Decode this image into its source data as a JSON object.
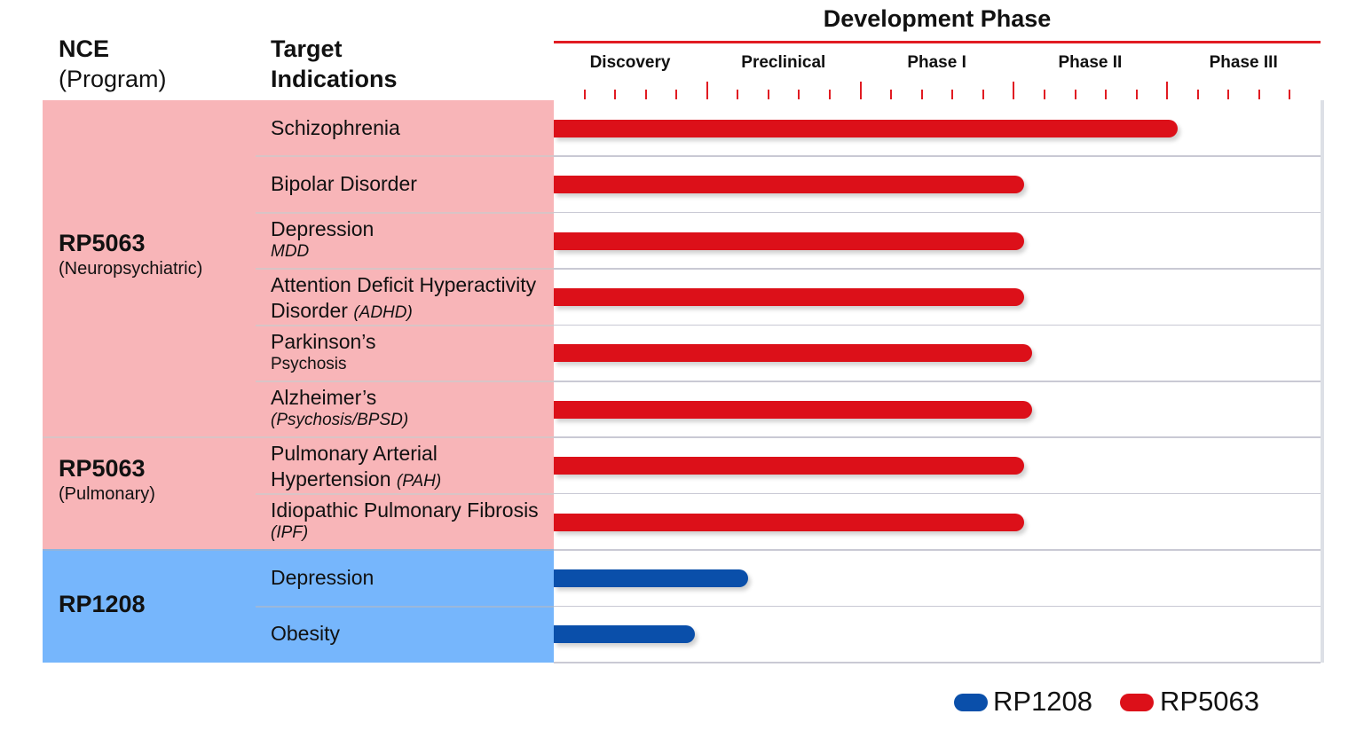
{
  "header": {
    "nce_line1": "NCE",
    "nce_line2": "(Program)",
    "target_line1": "Target",
    "target_line2": "Indications",
    "development_phase": "Development Phase"
  },
  "colors": {
    "rp5063_bar": "#dc1019",
    "rp1208_bar": "#0a4faa",
    "rp5063_band": "#f8b5b8",
    "rp1208_band": "#76b6fc",
    "phase_accent": "#e11b22"
  },
  "chart_data": {
    "type": "bar",
    "orientation": "horizontal",
    "x_axis": {
      "categories": [
        "Discovery",
        "Preclinical",
        "Phase I",
        "Phase II",
        "Phase III"
      ],
      "minor_ticks_per_phase": 5,
      "range": [
        0,
        5
      ],
      "unit": "phase"
    },
    "title": "Development Phase",
    "legend": {
      "placement": "bottom-right",
      "entries": [
        "RP1208",
        "RP5063"
      ]
    },
    "programs": [
      {
        "name": "RP5063",
        "subtitle": "(Neuropsychiatric)",
        "series": "RP5063"
      },
      {
        "name": "RP5063",
        "subtitle": "(Pulmonary)",
        "series": "RP5063"
      },
      {
        "name": "RP1208",
        "subtitle": "",
        "series": "RP1208"
      }
    ],
    "rows": [
      {
        "program": 0,
        "indication": "Schizophrenia",
        "sub": "",
        "sub_italic": false,
        "series": "RP5063",
        "value": 4.0
      },
      {
        "program": 0,
        "indication": "Bipolar Disorder",
        "sub": "",
        "sub_italic": false,
        "series": "RP5063",
        "value": 3.0
      },
      {
        "program": 0,
        "indication": "Depression",
        "sub": "MDD",
        "sub_italic": true,
        "series": "RP5063",
        "value": 3.0
      },
      {
        "program": 0,
        "indication": "Attention Deficit Hyperactivity",
        "indication2": "Disorder",
        "inline_sub": "(ADHD)",
        "sub": "",
        "sub_italic": true,
        "series": "RP5063",
        "value": 3.0
      },
      {
        "program": 0,
        "indication": "Parkinson’s",
        "sub": "Psychosis",
        "sub_italic": false,
        "series": "RP5063",
        "value": 3.05
      },
      {
        "program": 0,
        "indication": "Alzheimer’s",
        "sub": "(Psychosis/BPSD)",
        "sub_italic": true,
        "series": "RP5063",
        "value": 3.05
      },
      {
        "program": 1,
        "indication": "Pulmonary Arterial",
        "indication2": "Hypertension",
        "inline_sub": "(PAH)",
        "sub": "",
        "sub_italic": true,
        "series": "RP5063",
        "value": 3.0
      },
      {
        "program": 1,
        "indication": "Idiopathic Pulmonary Fibrosis",
        "sub": "(IPF)",
        "sub_italic": true,
        "series": "RP5063",
        "value": 3.0
      },
      {
        "program": 2,
        "indication": "Depression",
        "sub": "",
        "sub_italic": false,
        "series": "RP1208",
        "value": 1.2
      },
      {
        "program": 2,
        "indication": "Obesity",
        "sub": "",
        "sub_italic": false,
        "series": "RP1208",
        "value": 0.85
      }
    ]
  }
}
